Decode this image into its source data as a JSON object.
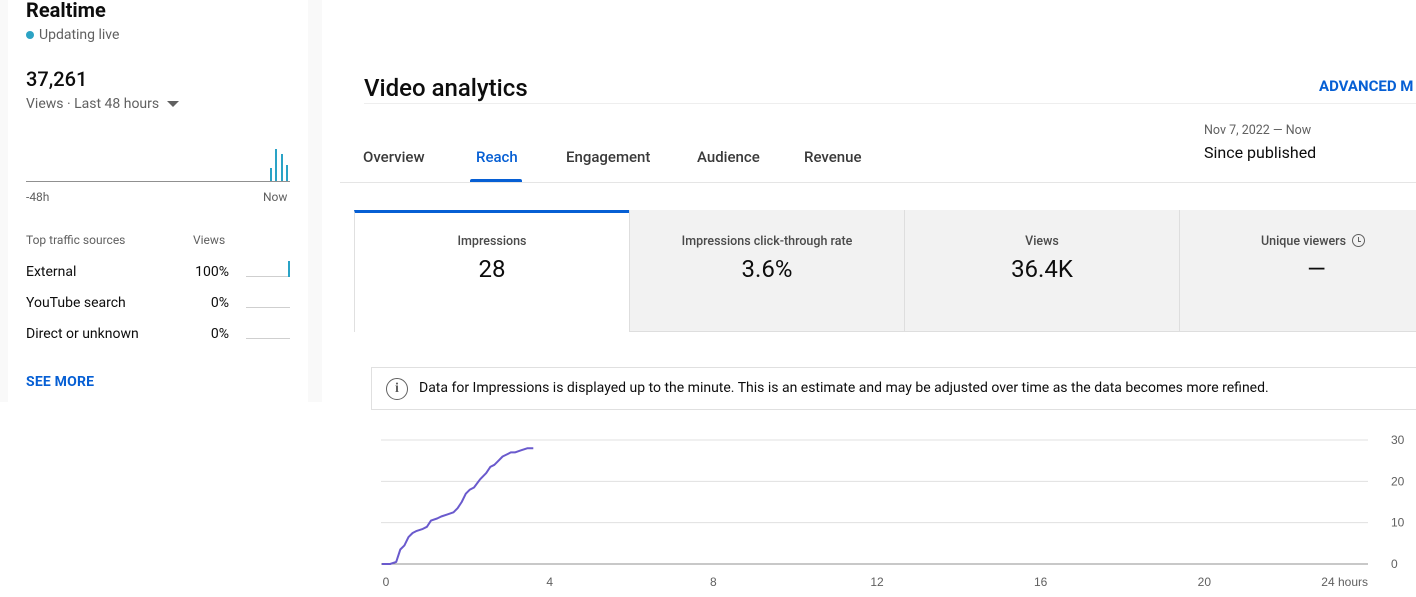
{
  "realtime": {
    "title": "Realtime",
    "status": "Updating live",
    "count": "37,261",
    "range_label": "Views · Last 48 hours",
    "spark_start": "-48h",
    "spark_end": "Now",
    "spark_color": "#2aa3c6",
    "spark_bars": [
      0,
      0,
      0,
      0,
      0,
      0,
      0,
      0,
      0,
      0,
      0,
      0,
      0,
      0,
      0,
      0,
      0,
      0,
      0,
      0,
      0,
      0,
      0,
      0,
      0,
      0,
      0,
      0,
      0,
      0,
      0,
      0,
      0,
      0,
      0,
      0,
      0,
      0,
      0,
      0,
      0,
      0,
      0,
      0,
      0.4,
      1.0,
      0.85,
      0.5
    ],
    "traffic": {
      "header_source": "Top traffic sources",
      "header_views": "Views",
      "rows": [
        {
          "name": "External",
          "pct": "100%",
          "fill": 1.0
        },
        {
          "name": "YouTube search",
          "pct": "0%",
          "fill": 0.0
        },
        {
          "name": "Direct or unknown",
          "pct": "0%",
          "fill": 0.0
        }
      ]
    },
    "see_more": "SEE MORE"
  },
  "header": {
    "title": "Video analytics",
    "advanced_mode": "ADVANCED M"
  },
  "tabs": [
    {
      "label": "Overview",
      "active": false
    },
    {
      "label": "Reach",
      "active": true
    },
    {
      "label": "Engagement",
      "active": false
    },
    {
      "label": "Audience",
      "active": false
    },
    {
      "label": "Revenue",
      "active": false
    }
  ],
  "date": {
    "range": "Nov 7, 2022 — Now",
    "label": "Since published"
  },
  "metrics": [
    {
      "label": "Impressions",
      "value": "28",
      "active": true
    },
    {
      "label": "Impressions click-through rate",
      "value": "3.6%",
      "active": false
    },
    {
      "label": "Views",
      "value": "36.4K",
      "active": false
    },
    {
      "label": "Unique viewers",
      "value": "—",
      "active": false,
      "icon": "clock-icon"
    }
  ],
  "notice": {
    "icon": "info-icon",
    "text": "Data for Impressions is displayed up to the minute. This is an estimate and may be adjusted over time as the data becomes more refined."
  },
  "colors": {
    "accent": "#065fd4",
    "chart_line": "#6a5acd"
  },
  "chart_data": {
    "type": "line",
    "title": "",
    "xlabel": "",
    "ylabel": "",
    "x_ticks": [
      "0",
      "4",
      "8",
      "12",
      "16",
      "20",
      "24 hours"
    ],
    "x_tick_values": [
      0,
      4,
      8,
      12,
      16,
      20,
      24
    ],
    "y_ticks": [
      "30",
      "20",
      "10",
      "0"
    ],
    "y_tick_values": [
      30,
      20,
      10,
      0
    ],
    "xlim": [
      0,
      24
    ],
    "ylim": [
      0,
      30
    ],
    "grid": true,
    "y_axis_side": "right",
    "series": [
      {
        "x": [
          -0.1,
          0.1,
          0.25,
          0.35,
          0.45,
          0.55,
          0.65,
          0.75,
          0.9,
          1.0,
          1.1,
          1.25,
          1.35,
          1.5,
          1.65,
          1.75,
          1.85,
          1.95,
          2.05,
          2.15,
          2.3,
          2.45,
          2.55,
          2.65,
          2.75,
          2.85,
          2.95,
          3.05,
          3.15,
          3.3,
          3.45,
          3.6
        ],
        "y": [
          0,
          0,
          0.5,
          3.5,
          4.5,
          6.5,
          7.5,
          8,
          8.5,
          9,
          10.5,
          11,
          11.5,
          12,
          12.5,
          13.5,
          15,
          17,
          18,
          18.5,
          20.5,
          22,
          23.5,
          24,
          25,
          26,
          26.5,
          27,
          27,
          27.5,
          28,
          28
        ]
      }
    ]
  }
}
